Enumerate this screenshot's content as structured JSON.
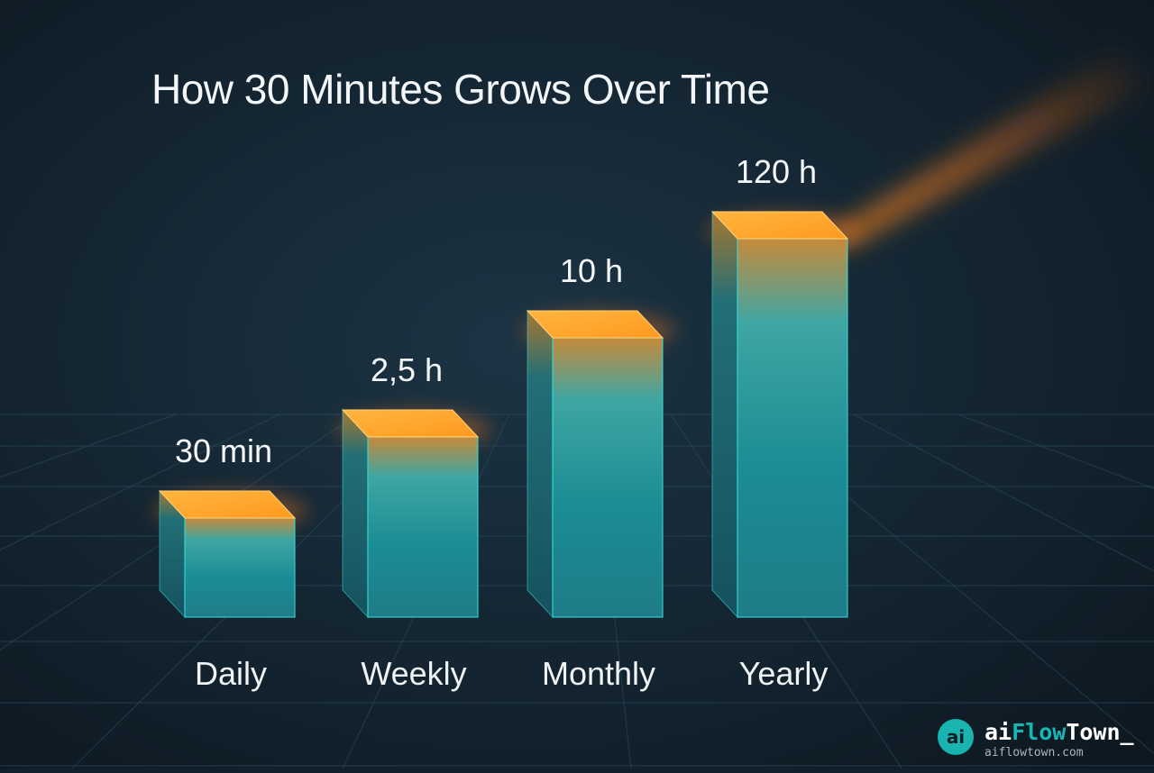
{
  "chart_data": {
    "type": "bar",
    "title": "How 30 Minutes Grows Over Time",
    "categories": [
      "Daily",
      "Weekly",
      "Monthly",
      "Yearly"
    ],
    "values_hours": [
      0.5,
      2.5,
      10,
      120
    ],
    "data_labels": [
      "30 min",
      "2,5 h",
      "10 h",
      "120 h"
    ],
    "xlabel": "",
    "ylabel": "",
    "scale": "non-linear (bars not proportional to values)",
    "grid": true,
    "legend": "none"
  },
  "colors": {
    "background": "#12202c",
    "bar_body": "#1a8e95",
    "bar_top": "#ffaa2e",
    "glow": "#ff7a1a"
  },
  "brand": {
    "logo_text": "ai",
    "name_part1": "ai",
    "name_part2": "Flow",
    "name_part3": "Town_",
    "url": "aiflowtown.com"
  }
}
